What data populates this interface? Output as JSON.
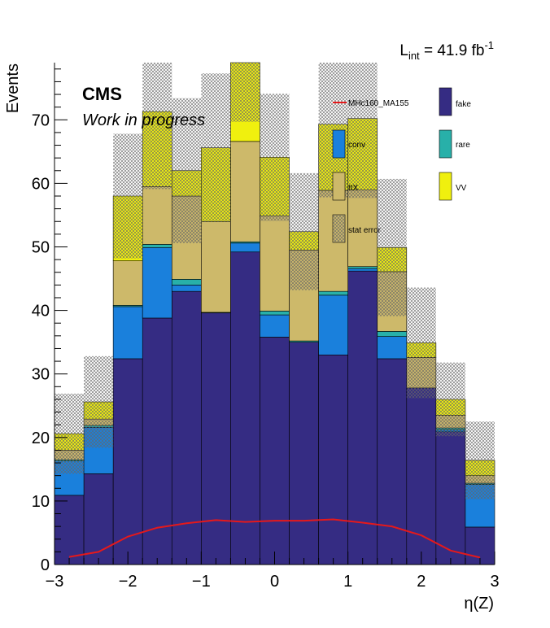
{
  "chart_data": {
    "type": "bar",
    "stacked": true,
    "xlabel": "η(Z)",
    "ylabel": "Events",
    "xlim": [
      -3,
      3
    ],
    "ylim": [
      0,
      79
    ],
    "x_ticks": [
      "−3",
      "−2",
      "−1",
      "0",
      "1",
      "2",
      "3"
    ],
    "y_ticks": [
      "0",
      "10",
      "20",
      "30",
      "40",
      "50",
      "60",
      "70"
    ],
    "lumi_label": {
      "prefix": "L",
      "sub": "int",
      "middle": " = 41.9 fb",
      "sup": "-1"
    },
    "cms_label": "CMS",
    "cms_sublabel": "Work in progress",
    "bin_edges": [
      -3.0,
      -2.6,
      -2.2,
      -1.8,
      -1.4,
      -1.0,
      -0.6,
      -0.2,
      0.2,
      0.6,
      1.0,
      1.4,
      1.8,
      2.2,
      2.6,
      3.0
    ],
    "series": [
      {
        "name": "fake",
        "color": "#352c83",
        "values": [
          10.9,
          14.3,
          32.4,
          38.8,
          43.0,
          39.6,
          49.2,
          35.8,
          35.0,
          33.0,
          46.2,
          32.4,
          27.8,
          20.9,
          5.9
        ]
      },
      {
        "name": "conv",
        "color": "#1a80dc",
        "values": [
          5.4,
          7.3,
          8.2,
          11.1,
          1.0,
          0.0,
          1.4,
          3.5,
          0.0,
          9.4,
          0.4,
          3.5,
          0.0,
          0.3,
          6.7
        ]
      },
      {
        "name": "rare",
        "color": "#28b0a9",
        "values": [
          0.2,
          0.3,
          0.2,
          0.5,
          0.9,
          0.1,
          0.2,
          0.6,
          0.2,
          0.6,
          0.3,
          0.8,
          0.0,
          0.3,
          0.2
        ]
      },
      {
        "name": "ttX",
        "color": "#cdb96a",
        "values": [
          1.5,
          1.0,
          7.0,
          9.1,
          13.1,
          14.3,
          15.8,
          15.0,
          14.3,
          15.9,
          12.1,
          9.4,
          4.8,
          2.0,
          1.2
        ]
      },
      {
        "name": "VV",
        "color": "#f0f00e",
        "values": [
          2.6,
          2.7,
          10.2,
          11.8,
          4.0,
          11.6,
          16.8,
          9.2,
          2.9,
          10.4,
          11.2,
          3.8,
          2.3,
          2.5,
          2.4
        ]
      }
    ],
    "stat_error_band": {
      "name": "stat error",
      "half_width": [
        6.3,
        7.2,
        9.8,
        12.2,
        11.4,
        11.7,
        13.7,
        10.0,
        9.2,
        11.5,
        12.5,
        10.8,
        8.7,
        5.8,
        6.1
      ]
    },
    "signal": {
      "name": "MHc160_MA155",
      "color": "#e5191b",
      "x": [
        -2.8,
        -2.4,
        -2.0,
        -1.6,
        -1.2,
        -0.8,
        -0.4,
        0.0,
        0.4,
        0.8,
        1.2,
        1.6,
        2.0,
        2.4,
        2.8
      ],
      "values": [
        1.2,
        2.0,
        4.4,
        5.8,
        6.5,
        7.0,
        6.7,
        6.9,
        6.9,
        7.1,
        6.6,
        6.0,
        4.6,
        2.2,
        1.1
      ]
    },
    "legend": [
      "MHc160_MA155",
      "conv",
      "ttX",
      "stat error",
      "fake",
      "rare",
      "VV"
    ],
    "legend_placement": "top-right"
  }
}
